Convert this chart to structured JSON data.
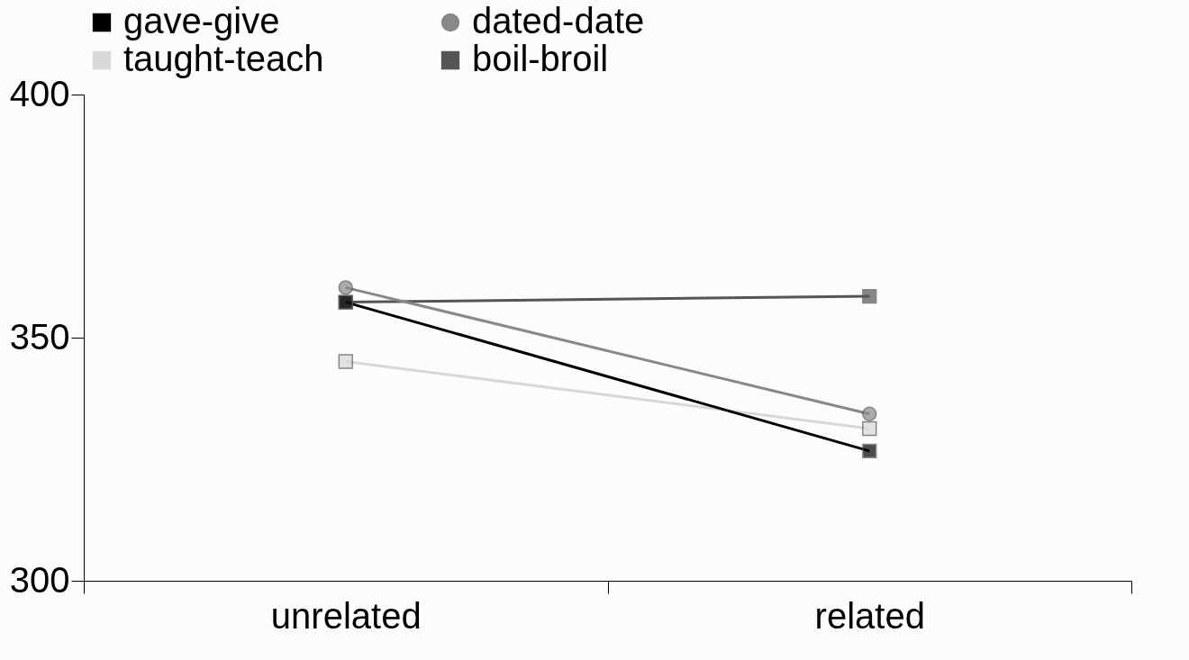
{
  "chart_data": {
    "type": "line",
    "categories": [
      "unrelated",
      "related"
    ],
    "series": [
      {
        "name": "gave-give",
        "color": "#000000",
        "marker": "square",
        "values": [
          357.3,
          326.7
        ]
      },
      {
        "name": "dated-date",
        "color": "#888888",
        "marker": "circle",
        "values": [
          360.3,
          334.3
        ]
      },
      {
        "name": "taught-teach",
        "color": "#d8d8d8",
        "marker": "square",
        "values": [
          345.1,
          331.3
        ]
      },
      {
        "name": "boil-broil",
        "color": "#555555",
        "marker": "square",
        "values": [
          357.3,
          358.5
        ]
      }
    ],
    "ylim": [
      300,
      400
    ],
    "yticks": [
      300,
      350,
      400
    ],
    "grid": false,
    "legend": "top",
    "line_style": "solid"
  }
}
